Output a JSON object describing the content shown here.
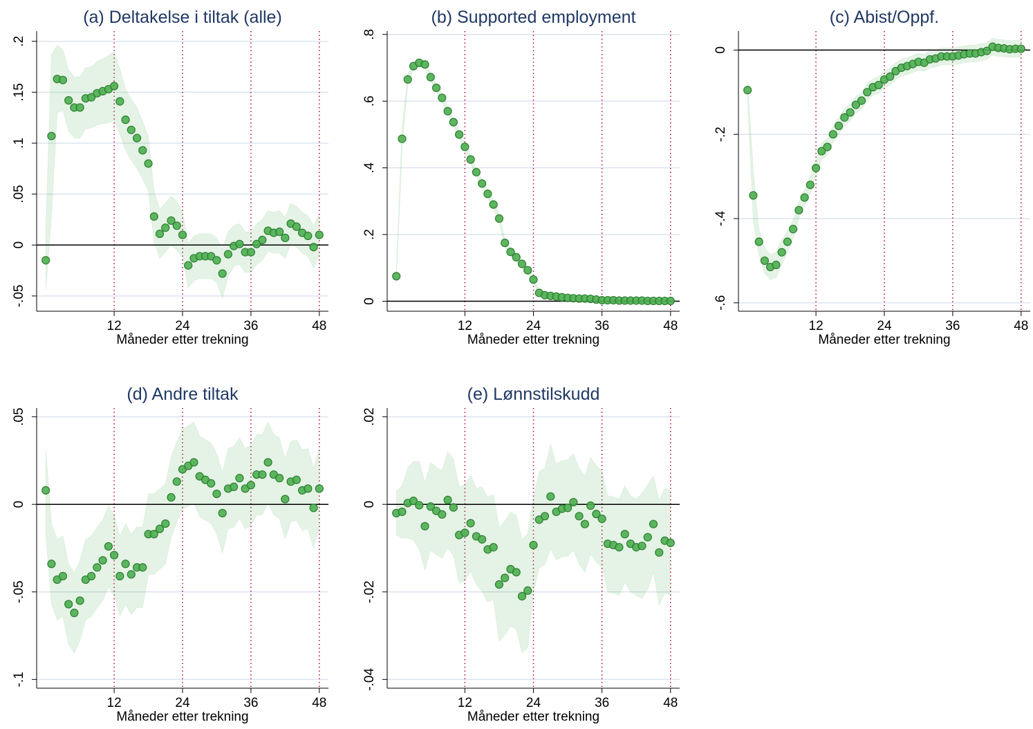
{
  "chart_data": [
    {
      "type": "scatter",
      "title": "(a) Deltakelse i tiltak (alle)",
      "x_label": "Måneder etter trekning",
      "x": [
        0,
        1,
        2,
        3,
        4,
        5,
        6,
        7,
        8,
        9,
        10,
        11,
        12,
        13,
        14,
        15,
        16,
        17,
        18,
        19,
        20,
        21,
        22,
        23,
        24,
        25,
        26,
        27,
        28,
        29,
        30,
        31,
        32,
        33,
        34,
        35,
        36,
        37,
        38,
        39,
        40,
        41,
        42,
        43,
        44,
        45,
        46,
        47,
        48
      ],
      "values": [
        -0.015,
        0.107,
        0.163,
        0.162,
        0.142,
        0.135,
        0.135,
        0.144,
        0.145,
        0.149,
        0.151,
        0.153,
        0.156,
        0.141,
        0.123,
        0.113,
        0.105,
        0.093,
        0.08,
        0.028,
        0.011,
        0.017,
        0.024,
        0.019,
        0.01,
        -0.02,
        -0.013,
        -0.011,
        -0.011,
        -0.011,
        -0.015,
        -0.028,
        -0.009,
        -0.001,
        0.001,
        -0.007,
        -0.007,
        0.001,
        0.005,
        0.014,
        0.012,
        0.013,
        0.007,
        0.021,
        0.018,
        0.012,
        0.009,
        -0.002,
        0.01
      ],
      "errors": [
        0.03,
        0.08,
        0.033,
        0.03,
        0.03,
        0.03,
        0.03,
        0.03,
        0.03,
        0.031,
        0.032,
        0.033,
        0.034,
        0.032,
        0.03,
        0.03,
        0.03,
        0.028,
        0.027,
        0.025,
        0.024,
        0.024,
        0.024,
        0.024,
        0.022,
        0.022,
        0.022,
        0.022,
        0.022,
        0.022,
        0.022,
        0.024,
        0.022,
        0.02,
        0.02,
        0.02,
        0.02,
        0.02,
        0.02,
        0.02,
        0.02,
        0.021,
        0.02,
        0.02,
        0.02,
        0.02,
        0.02,
        0.021,
        0.021
      ],
      "color": "#4caf50",
      "xlim": [
        -1.6,
        49.6
      ],
      "ylim": [
        -0.065,
        0.21
      ],
      "xticks": [
        12,
        24,
        36,
        48
      ],
      "yticks": [
        {
          "value": -0.05,
          "label": "-.05"
        },
        0,
        {
          "value": 0.05,
          "label": ".05"
        },
        {
          "value": 0.1,
          "label": ".1"
        },
        {
          "value": 0.15,
          "label": ".15"
        },
        {
          "value": 0.2,
          "label": ".2"
        }
      ],
      "reference_line": 0,
      "grid": true
    },
    {
      "type": "scatter",
      "title": "(b) Supported employment",
      "x_label": "Måneder etter trekning",
      "x": [
        0,
        1,
        2,
        3,
        4,
        5,
        6,
        7,
        8,
        9,
        10,
        11,
        12,
        13,
        14,
        15,
        16,
        17,
        18,
        19,
        20,
        21,
        22,
        23,
        24,
        25,
        26,
        27,
        28,
        29,
        30,
        31,
        32,
        33,
        34,
        35,
        36,
        37,
        38,
        39,
        40,
        41,
        42,
        43,
        44,
        45,
        46,
        47,
        48
      ],
      "values": [
        0.075,
        0.487,
        0.665,
        0.705,
        0.715,
        0.71,
        0.672,
        0.64,
        0.61,
        0.57,
        0.537,
        0.5,
        0.463,
        0.425,
        0.387,
        0.353,
        0.322,
        0.29,
        0.248,
        0.175,
        0.148,
        0.132,
        0.112,
        0.093,
        0.065,
        0.025,
        0.018,
        0.016,
        0.014,
        0.012,
        0.01,
        0.009,
        0.008,
        0.008,
        0.007,
        0.005,
        0.003,
        0.003,
        0.003,
        0.002,
        0.002,
        0.002,
        0.002,
        0.002,
        0.001,
        0.001,
        0.001,
        0.001,
        0.001
      ],
      "errors": [
        0.02,
        0.03,
        0.015,
        0.012,
        0.012,
        0.012,
        0.012,
        0.012,
        0.012,
        0.012,
        0.012,
        0.012,
        0.012,
        0.012,
        0.012,
        0.012,
        0.012,
        0.012,
        0.012,
        0.012,
        0.012,
        0.012,
        0.012,
        0.012,
        0.012,
        0.006,
        0.005,
        0.005,
        0.005,
        0.005,
        0.004,
        0.004,
        0.004,
        0.004,
        0.004,
        0.003,
        0.003,
        0.003,
        0.003,
        0.003,
        0.003,
        0.003,
        0.003,
        0.003,
        0.003,
        0.003,
        0.003,
        0.003,
        0.003
      ],
      "color": "#4caf50",
      "xlim": [
        -1.6,
        49.6
      ],
      "ylim": [
        -0.03,
        0.81
      ],
      "xticks": [
        12,
        24,
        36,
        48
      ],
      "yticks": [
        0,
        {
          "value": 0.2,
          "label": ".2"
        },
        {
          "value": 0.4,
          "label": ".4"
        },
        {
          "value": 0.6,
          "label": ".6"
        },
        {
          "value": 0.8,
          "label": ".8"
        }
      ],
      "reference_line": 0,
      "grid": true
    },
    {
      "type": "scatter",
      "title": "(c) Abist/Oppf.",
      "x_label": "Måneder etter trekning",
      "x": [
        0,
        1,
        2,
        3,
        4,
        5,
        6,
        7,
        8,
        9,
        10,
        11,
        12,
        13,
        14,
        15,
        16,
        17,
        18,
        19,
        20,
        21,
        22,
        23,
        24,
        25,
        26,
        27,
        28,
        29,
        30,
        31,
        32,
        33,
        34,
        35,
        36,
        37,
        38,
        39,
        40,
        41,
        42,
        43,
        44,
        45,
        46,
        47,
        48
      ],
      "values": [
        -0.095,
        -0.345,
        -0.455,
        -0.5,
        -0.515,
        -0.51,
        -0.48,
        -0.455,
        -0.425,
        -0.38,
        -0.35,
        -0.32,
        -0.28,
        -0.24,
        -0.23,
        -0.2,
        -0.18,
        -0.16,
        -0.148,
        -0.13,
        -0.12,
        -0.1,
        -0.088,
        -0.083,
        -0.07,
        -0.063,
        -0.05,
        -0.042,
        -0.038,
        -0.033,
        -0.028,
        -0.03,
        -0.022,
        -0.02,
        -0.015,
        -0.015,
        -0.015,
        -0.013,
        -0.01,
        -0.008,
        -0.008,
        -0.005,
        -0.002,
        0.008,
        0.005,
        0.004,
        0.002,
        0.003,
        0.003
      ],
      "errors": [
        0.02,
        0.06,
        0.03,
        0.03,
        0.03,
        0.03,
        0.03,
        0.025,
        0.022,
        0.02,
        0.02,
        0.02,
        0.02,
        0.02,
        0.02,
        0.02,
        0.02,
        0.02,
        0.02,
        0.02,
        0.02,
        0.02,
        0.02,
        0.02,
        0.02,
        0.02,
        0.02,
        0.02,
        0.02,
        0.02,
        0.02,
        0.02,
        0.02,
        0.02,
        0.02,
        0.02,
        0.02,
        0.02,
        0.02,
        0.02,
        0.02,
        0.02,
        0.02,
        0.02,
        0.02,
        0.02,
        0.02,
        0.02,
        0.02
      ],
      "color": "#4caf50",
      "xlim": [
        -1.6,
        49.6
      ],
      "ylim": [
        -0.62,
        0.045
      ],
      "xticks": [
        12,
        24,
        36,
        48
      ],
      "yticks": [
        {
          "value": -0.6,
          "label": "-.6"
        },
        {
          "value": -0.4,
          "label": "-.4"
        },
        {
          "value": -0.2,
          "label": "-.2"
        },
        0
      ],
      "reference_line": 0,
      "grid": true
    },
    {
      "type": "scatter",
      "title": "(d) Andre tiltak",
      "x_label": "Måneder etter trekning",
      "x": [
        0,
        1,
        2,
        3,
        4,
        5,
        6,
        7,
        8,
        9,
        10,
        11,
        12,
        13,
        14,
        15,
        16,
        17,
        18,
        19,
        20,
        21,
        22,
        23,
        24,
        25,
        26,
        27,
        28,
        29,
        30,
        31,
        32,
        33,
        34,
        35,
        36,
        37,
        38,
        39,
        40,
        41,
        42,
        43,
        44,
        45,
        46,
        47,
        48
      ],
      "values": [
        0.008,
        -0.034,
        -0.043,
        -0.041,
        -0.057,
        -0.062,
        -0.055,
        -0.043,
        -0.041,
        -0.036,
        -0.032,
        -0.024,
        -0.029,
        -0.041,
        -0.034,
        -0.04,
        -0.036,
        -0.036,
        -0.017,
        -0.017,
        -0.014,
        -0.011,
        0.004,
        0.013,
        0.02,
        0.022,
        0.024,
        0.016,
        0.014,
        0.012,
        0.006,
        -0.005,
        0.009,
        0.01,
        0.015,
        0.009,
        0.011,
        0.017,
        0.017,
        0.024,
        0.017,
        0.015,
        0.003,
        0.013,
        0.014,
        0.008,
        0.009,
        -0.002,
        0.009
      ],
      "errors": [
        0.024,
        0.023,
        0.023,
        0.023,
        0.023,
        0.023,
        0.023,
        0.023,
        0.023,
        0.023,
        0.023,
        0.023,
        0.023,
        0.023,
        0.023,
        0.023,
        0.023,
        0.023,
        0.023,
        0.023,
        0.023,
        0.023,
        0.023,
        0.023,
        0.023,
        0.023,
        0.023,
        0.023,
        0.023,
        0.023,
        0.023,
        0.023,
        0.023,
        0.023,
        0.023,
        0.023,
        0.023,
        0.023,
        0.023,
        0.023,
        0.023,
        0.023,
        0.023,
        0.023,
        0.023,
        0.023,
        0.023,
        0.023,
        0.023
      ],
      "color": "#4caf50",
      "xlim": [
        -1.6,
        49.6
      ],
      "ylim": [
        -0.105,
        0.055
      ],
      "xticks": [
        12,
        24,
        36,
        48
      ],
      "yticks": [
        {
          "value": -0.1,
          "label": "-.1"
        },
        {
          "value": -0.05,
          "label": "-.05"
        },
        0,
        {
          "value": 0.05,
          "label": ".05"
        }
      ],
      "reference_line": 0,
      "grid": true
    },
    {
      "type": "scatter",
      "title": "(e) Lønnstilskudd",
      "x_label": "Måneder etter trekning",
      "x": [
        0,
        1,
        2,
        3,
        4,
        5,
        6,
        7,
        8,
        9,
        10,
        11,
        12,
        13,
        14,
        15,
        16,
        17,
        18,
        19,
        20,
        21,
        22,
        23,
        24,
        25,
        26,
        27,
        28,
        29,
        30,
        31,
        32,
        33,
        34,
        35,
        36,
        37,
        38,
        39,
        40,
        41,
        42,
        43,
        44,
        45,
        46,
        47,
        48
      ],
      "values": [
        -0.002,
        -0.0017,
        0.0003,
        0.0008,
        -0.0002,
        -0.005,
        -0.0005,
        -0.0015,
        -0.0023,
        0.001,
        -0.0007,
        -0.007,
        -0.0065,
        -0.0043,
        -0.0073,
        -0.008,
        -0.0103,
        -0.0098,
        -0.0183,
        -0.0168,
        -0.0148,
        -0.0155,
        -0.021,
        -0.0197,
        -0.0093,
        -0.0035,
        -0.0027,
        0.0018,
        -0.0017,
        -0.001,
        -0.0008,
        0.0005,
        -0.0027,
        -0.0045,
        -0.0003,
        -0.0022,
        -0.0033,
        -0.009,
        -0.0093,
        -0.0098,
        -0.0068,
        -0.009,
        -0.0098,
        -0.0095,
        -0.0075,
        -0.0045,
        -0.011,
        -0.0083,
        -0.0088
      ],
      "errors": [
        0.005,
        0.006,
        0.008,
        0.009,
        0.01,
        0.01,
        0.01,
        0.01,
        0.01,
        0.011,
        0.011,
        0.011,
        0.011,
        0.011,
        0.011,
        0.012,
        0.012,
        0.012,
        0.013,
        0.013,
        0.013,
        0.013,
        0.013,
        0.013,
        0.011,
        0.011,
        0.011,
        0.012,
        0.011,
        0.011,
        0.011,
        0.011,
        0.011,
        0.011,
        0.011,
        0.011,
        0.011,
        0.011,
        0.011,
        0.011,
        0.011,
        0.011,
        0.011,
        0.012,
        0.012,
        0.011,
        0.012,
        0.012,
        0.012
      ],
      "color": "#4caf50",
      "xlim": [
        -1.6,
        49.6
      ],
      "ylim": [
        -0.042,
        0.022
      ],
      "xticks": [
        12,
        24,
        36,
        48
      ],
      "yticks": [
        {
          "value": -0.04,
          "label": "-.04"
        },
        {
          "value": -0.02,
          "label": "-.02"
        },
        0,
        {
          "value": 0.02,
          "label": ".02"
        }
      ],
      "reference_line": 0,
      "grid": true
    }
  ]
}
